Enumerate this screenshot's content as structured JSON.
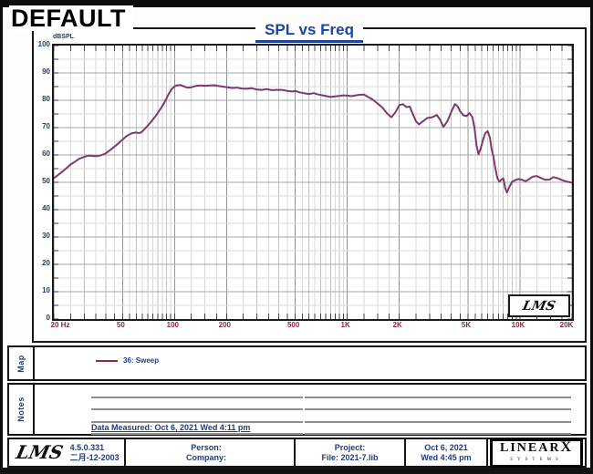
{
  "window": {
    "default_label": "DEFAULT"
  },
  "chart": {
    "title": "SPL vs Freq",
    "y_axis": {
      "unit": "dBSPL"
    },
    "watermark": "LMS"
  },
  "chart_data": {
    "type": "line",
    "title": "SPL vs Freq",
    "ylabel": "dBSPL",
    "xscale": "log",
    "xlim": [
      20,
      20000
    ],
    "ylim": [
      0,
      100
    ],
    "grid": "on",
    "legend_position": "map strip below chart",
    "y_ticks": [
      100,
      90,
      80,
      70,
      60,
      50,
      40,
      30,
      20,
      10,
      0
    ],
    "x_ticks": [
      {
        "label": "20 Hz",
        "f": 20
      },
      {
        "label": "50",
        "f": 50
      },
      {
        "label": "100",
        "f": 100
      },
      {
        "label": "200",
        "f": 200
      },
      {
        "label": "500",
        "f": 500
      },
      {
        "label": "1K",
        "f": 1000
      },
      {
        "label": "2K",
        "f": 2000
      },
      {
        "label": "5K",
        "f": 5000
      },
      {
        "label": "10K",
        "f": 10000
      },
      {
        "label": "20K",
        "f": 20000
      }
    ],
    "series": [
      {
        "name": "36: Sweep",
        "color": "#7c3a68",
        "points": [
          [
            20,
            51.5
          ],
          [
            21,
            52.5
          ],
          [
            22,
            53.5
          ],
          [
            23,
            54.5
          ],
          [
            24,
            55.5
          ],
          [
            25,
            56.5
          ],
          [
            26,
            57.2
          ],
          [
            28,
            58.6
          ],
          [
            30,
            59.3
          ],
          [
            32,
            59.8
          ],
          [
            34,
            59.6
          ],
          [
            36,
            59.6
          ],
          [
            38,
            60.0
          ],
          [
            40,
            60.6
          ],
          [
            42,
            61.6
          ],
          [
            44,
            62.6
          ],
          [
            46,
            63.6
          ],
          [
            48,
            64.6
          ],
          [
            50,
            65.6
          ],
          [
            52,
            66.6
          ],
          [
            54,
            67.3
          ],
          [
            56,
            67.8
          ],
          [
            58,
            68.1
          ],
          [
            60,
            68.2
          ],
          [
            62,
            68.0
          ],
          [
            64,
            68.2
          ],
          [
            66,
            69.0
          ],
          [
            69,
            70.3
          ],
          [
            72,
            71.6
          ],
          [
            75,
            73.0
          ],
          [
            78,
            74.4
          ],
          [
            81,
            75.9
          ],
          [
            84,
            77.4
          ],
          [
            87,
            79.0
          ],
          [
            90,
            80.8
          ],
          [
            93,
            82.6
          ],
          [
            96,
            84.0
          ],
          [
            100,
            85.1
          ],
          [
            104,
            85.5
          ],
          [
            108,
            85.6
          ],
          [
            112,
            85.2
          ],
          [
            116,
            84.8
          ],
          [
            120,
            84.6
          ],
          [
            126,
            84.8
          ],
          [
            132,
            85.2
          ],
          [
            140,
            85.4
          ],
          [
            150,
            85.3
          ],
          [
            160,
            85.4
          ],
          [
            170,
            85.5
          ],
          [
            180,
            85.2
          ],
          [
            190,
            85.0
          ],
          [
            200,
            84.8
          ],
          [
            215,
            84.5
          ],
          [
            230,
            84.6
          ],
          [
            245,
            84.3
          ],
          [
            260,
            84.2
          ],
          [
            280,
            84.4
          ],
          [
            300,
            83.9
          ],
          [
            320,
            83.8
          ],
          [
            340,
            84.1
          ],
          [
            365,
            83.7
          ],
          [
            390,
            83.8
          ],
          [
            420,
            83.8
          ],
          [
            450,
            83.4
          ],
          [
            480,
            83.2
          ],
          [
            500,
            83.4
          ],
          [
            530,
            82.9
          ],
          [
            560,
            82.6
          ],
          [
            600,
            82.3
          ],
          [
            640,
            82.6
          ],
          [
            680,
            82.1
          ],
          [
            720,
            81.8
          ],
          [
            760,
            81.5
          ],
          [
            800,
            81.2
          ],
          [
            850,
            81.4
          ],
          [
            900,
            81.6
          ],
          [
            950,
            81.8
          ],
          [
            1000,
            81.7
          ],
          [
            1060,
            81.5
          ],
          [
            1120,
            81.8
          ],
          [
            1180,
            82.0
          ],
          [
            1250,
            82.1
          ],
          [
            1320,
            81.2
          ],
          [
            1400,
            80.3
          ],
          [
            1500,
            78.8
          ],
          [
            1600,
            77.3
          ],
          [
            1700,
            75.2
          ],
          [
            1800,
            73.8
          ],
          [
            1900,
            75.6
          ],
          [
            2000,
            78.2
          ],
          [
            2100,
            78.6
          ],
          [
            2200,
            77.5
          ],
          [
            2300,
            77.7
          ],
          [
            2400,
            74.8
          ],
          [
            2500,
            72.3
          ],
          [
            2600,
            71.2
          ],
          [
            2750,
            72.4
          ],
          [
            2900,
            73.5
          ],
          [
            3100,
            73.8
          ],
          [
            3300,
            74.6
          ],
          [
            3450,
            72.8
          ],
          [
            3600,
            70.3
          ],
          [
            3800,
            72.3
          ],
          [
            4000,
            75.8
          ],
          [
            4200,
            78.6
          ],
          [
            4350,
            77.8
          ],
          [
            4500,
            76.0
          ],
          [
            4700,
            74.5
          ],
          [
            4900,
            74.2
          ],
          [
            5100,
            75.3
          ],
          [
            5300,
            73.8
          ],
          [
            5450,
            70.0
          ],
          [
            5600,
            63.5
          ],
          [
            5750,
            60.3
          ],
          [
            5900,
            62.0
          ],
          [
            6100,
            65.5
          ],
          [
            6300,
            68.0
          ],
          [
            6500,
            68.7
          ],
          [
            6700,
            66.2
          ],
          [
            6850,
            62.0
          ],
          [
            7000,
            59.7
          ],
          [
            7200,
            55.0
          ],
          [
            7400,
            51.5
          ],
          [
            7600,
            50.2
          ],
          [
            7800,
            51.0
          ],
          [
            8000,
            51.4
          ],
          [
            8200,
            48.0
          ],
          [
            8400,
            46.3
          ],
          [
            8700,
            48.5
          ],
          [
            9000,
            50.2
          ],
          [
            9400,
            50.8
          ],
          [
            9800,
            51.2
          ],
          [
            10300,
            50.9
          ],
          [
            10800,
            50.4
          ],
          [
            11300,
            51.2
          ],
          [
            11900,
            52.1
          ],
          [
            12500,
            52.3
          ],
          [
            13200,
            51.6
          ],
          [
            14000,
            50.9
          ],
          [
            14800,
            51.0
          ],
          [
            15600,
            51.9
          ],
          [
            16500,
            51.5
          ],
          [
            17500,
            50.8
          ],
          [
            18500,
            50.3
          ],
          [
            19300,
            50.1
          ],
          [
            20000,
            49.8
          ]
        ]
      }
    ]
  },
  "map": {
    "label": "Map",
    "legend": [
      {
        "swatch_color": "#8c2a3e",
        "label": "36: Sweep"
      }
    ]
  },
  "notes": {
    "label": "Notes",
    "measured_text": "Data Measured: Oct  6, 2021  Wed  4:11 pm"
  },
  "footer": {
    "lms_logo": "LMS",
    "version": "4.5.0.331",
    "version_date": "二月-12-2003",
    "person_label": "Person:",
    "company_label": "Company:",
    "project_label": "Project:",
    "file_label": "File: 2021-7.lib",
    "date": "Oct  6, 2021",
    "time": "Wed  4:45 pm",
    "brand": {
      "name_main": "LINEAR",
      "name_x": "X",
      "sub": "SYSTEMS"
    }
  }
}
